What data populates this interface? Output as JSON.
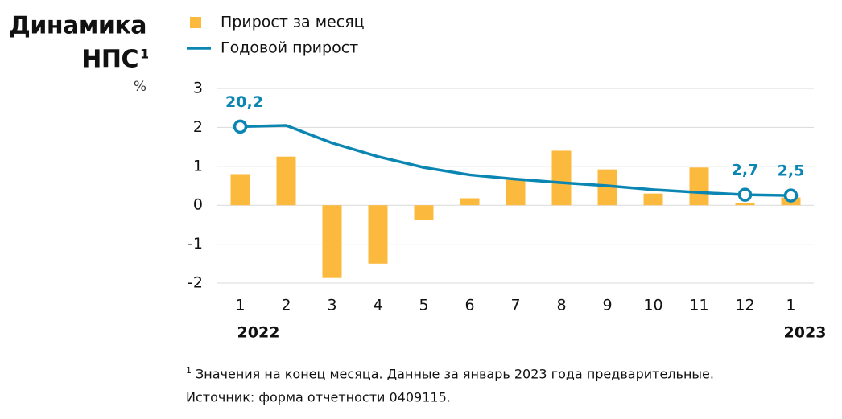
{
  "chart_data": {
    "type": "bar_line",
    "title_lines": [
      "Динамика",
      "НПС"
    ],
    "title_footnote_mark": "1",
    "unit": "%",
    "categories": [
      "1",
      "2",
      "3",
      "4",
      "5",
      "6",
      "7",
      "8",
      "9",
      "10",
      "11",
      "12",
      "1"
    ],
    "year_labels": [
      "2022",
      "2023"
    ],
    "series": [
      {
        "name": "Прирост за месяц",
        "type": "bar",
        "color": "#fbb93e",
        "values": [
          0.8,
          1.25,
          -1.87,
          -1.5,
          -0.37,
          0.18,
          0.65,
          1.4,
          0.92,
          0.3,
          0.97,
          0.06,
          0.2
        ]
      },
      {
        "name": "Годовой прирост",
        "type": "line",
        "axis": "y2",
        "color": "#0b86b3",
        "values": [
          20.2,
          20.5,
          16,
          12.5,
          9.7,
          7.8,
          6.7,
          5.8,
          5.0,
          4.0,
          3.3,
          2.7,
          2.5
        ],
        "value_labels": [
          "20,2",
          null,
          null,
          null,
          null,
          null,
          null,
          null,
          null,
          null,
          null,
          "2,7",
          "2,5"
        ]
      }
    ],
    "ylim": [
      -2,
      3
    ],
    "yticks": [
      -2,
      -1,
      0,
      1,
      2,
      3
    ],
    "y2lim": [
      -20,
      30
    ],
    "grid": true,
    "footnote_mark": "1",
    "footnote": "Значения на конец месяца. Данные за январь 2023 года предварительные.",
    "source": "Источник: форма отчетности 0409115."
  }
}
